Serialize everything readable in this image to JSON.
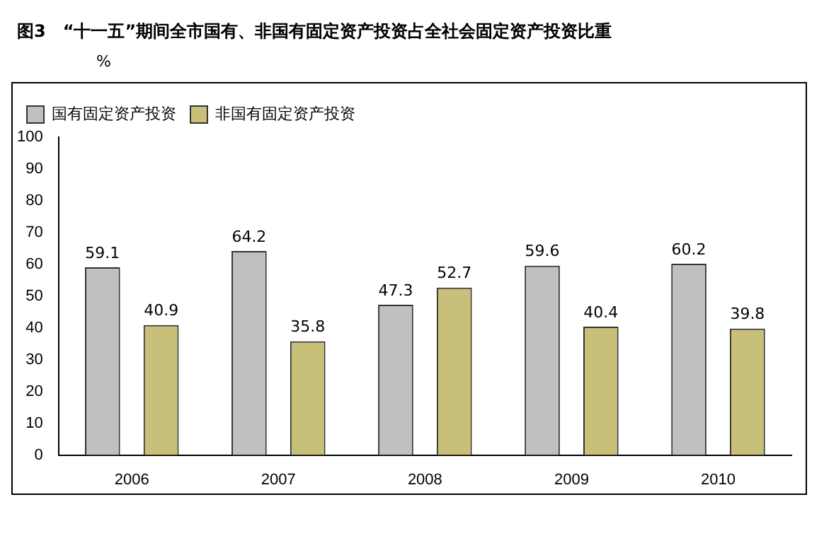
{
  "chart_data": {
    "type": "bar",
    "title": "图3　“十一五”期间全市国有、非国有固定资产投资占全社会固定资产投资比重",
    "ylabel": "%",
    "categories": [
      "2006",
      "2007",
      "2008",
      "2009",
      "2010"
    ],
    "series": [
      {
        "name": "国有固定资产投资",
        "color": "#c0c0c0",
        "values": [
          59.1,
          64.2,
          47.3,
          59.6,
          60.2
        ]
      },
      {
        "name": "非国有固定资产投资",
        "color": "#c8c078",
        "values": [
          40.9,
          35.8,
          52.7,
          40.4,
          39.8
        ]
      }
    ],
    "ylim": [
      0,
      100
    ],
    "yticks": [
      0,
      10,
      20,
      30,
      40,
      50,
      60,
      70,
      80,
      90,
      100
    ],
    "grid": false,
    "legend": "top left",
    "data_labels": true
  }
}
